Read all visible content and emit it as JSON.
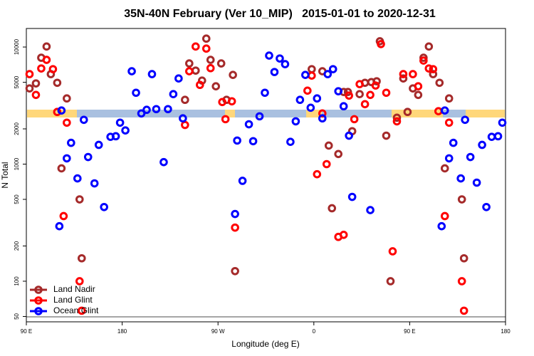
{
  "chart_data": {
    "type": "scatter",
    "title": "35N-40N February (Ver 10_MIP)   2015-01-01 to 2020-12-31",
    "xlabel": "Longitude (deg E)",
    "ylabel": "N Total",
    "xlim": [
      90,
      540
    ],
    "xticks": [
      {
        "value": 90,
        "label": "90 E"
      },
      180,
      {
        "value": 270,
        "label": "90 W"
      },
      {
        "value": 360,
        "label": "0"
      },
      {
        "value": 450,
        "label": "90 E"
      },
      {
        "value": 540,
        "label": "180"
      }
    ],
    "ylim": [
      45,
      14400
    ],
    "yscale": "log",
    "yticks": [
      50,
      100,
      200,
      500,
      1000,
      2000,
      5000,
      10000
    ],
    "legend": "bottom left",
    "series": [
      {
        "name": "Land Nadir",
        "color": "#a52a2a",
        "x": [
          93,
          99,
          104,
          109,
          113,
          119,
          128,
          123,
          140,
          142,
          239,
          243,
          249,
          255,
          259,
          263,
          268,
          273,
          278,
          284,
          286,
          358,
          368,
          374,
          383,
          377,
          388,
          392,
          396,
          403,
          408,
          414,
          419,
          428,
          422,
          432,
          438,
          444,
          448,
          453,
          458,
          463,
          468,
          472,
          478,
          487,
          483,
          499,
          501
        ],
        "values": [
          4430,
          4890,
          8100,
          10100,
          5870,
          4950,
          3640,
          920,
          500,
          157,
          3540,
          7240,
          6290,
          5170,
          11800,
          7770,
          4620,
          7240,
          3540,
          5780,
          122,
          6470,
          6210,
          1440,
          1220,
          420,
          4130,
          4130,
          1910,
          3960,
          4950,
          5020,
          5100,
          1750,
          11200,
          100,
          2490,
          5390,
          2790,
          4430,
          3900,
          8100,
          10100,
          5870,
          4950,
          3640,
          920,
          500,
          157
        ]
      },
      {
        "name": "Land Glint",
        "color": "#ff0000",
        "x": [
          93,
          99,
          104,
          109,
          115,
          119,
          125,
          128,
          140,
          142,
          239,
          243,
          249,
          253,
          259,
          263,
          274,
          277,
          283,
          286,
          354,
          358,
          363,
          368,
          372,
          383,
          388,
          393,
          398,
          403,
          408,
          413,
          418,
          423,
          428,
          434,
          438,
          444,
          453,
          458,
          463,
          468,
          472,
          477,
          483,
          487,
          499,
          501
        ],
        "values": [
          5870,
          3900,
          6560,
          7770,
          6470,
          2790,
          360,
          2260,
          100,
          56,
          2160,
          6210,
          10100,
          4750,
          9700,
          6600,
          3390,
          2420,
          3440,
          287,
          4240,
          5700,
          820,
          2710,
          1000,
          239,
          249,
          3850,
          2420,
          4820,
          3250,
          3900,
          4690,
          10600,
          4070,
          180,
          2320,
          5870,
          5870,
          4620,
          7660,
          6560,
          6470,
          2830,
          360,
          2260,
          100,
          56
        ]
      },
      {
        "name": "Ocean Glint",
        "color": "#0000ff",
        "x": [
          121,
          123,
          128,
          132,
          138,
          144,
          148,
          154,
          158,
          163,
          169,
          174,
          178,
          183,
          189,
          193,
          198,
          203,
          208,
          212,
          219,
          223,
          228,
          233,
          237,
          286,
          288,
          293,
          299,
          303,
          309,
          314,
          318,
          323,
          328,
          333,
          338,
          343,
          347,
          352,
          357,
          363,
          368,
          373,
          378,
          383,
          388,
          393,
          396,
          413,
          480,
          483,
          487,
          491,
          498,
          502,
          507,
          513,
          518,
          522,
          527,
          533,
          537
        ],
        "values": [
          295,
          2870,
          1120,
          1520,
          755,
          2390,
          1150,
          685,
          1460,
          430,
          1710,
          1730,
          2260,
          1940,
          6210,
          4070,
          2710,
          2910,
          5870,
          2950,
          1040,
          2950,
          3960,
          5390,
          2460,
          375,
          1590,
          720,
          2190,
          1570,
          2560,
          4070,
          8450,
          6120,
          7980,
          7140,
          1550,
          2320,
          3540,
          5780,
          3030,
          3640,
          2460,
          5870,
          6470,
          4190,
          3120,
          1750,
          525,
          405,
          295,
          2870,
          1120,
          1520,
          755,
          2390,
          1150,
          695,
          1460,
          430,
          1710,
          1730,
          2260
        ]
      }
    ]
  }
}
